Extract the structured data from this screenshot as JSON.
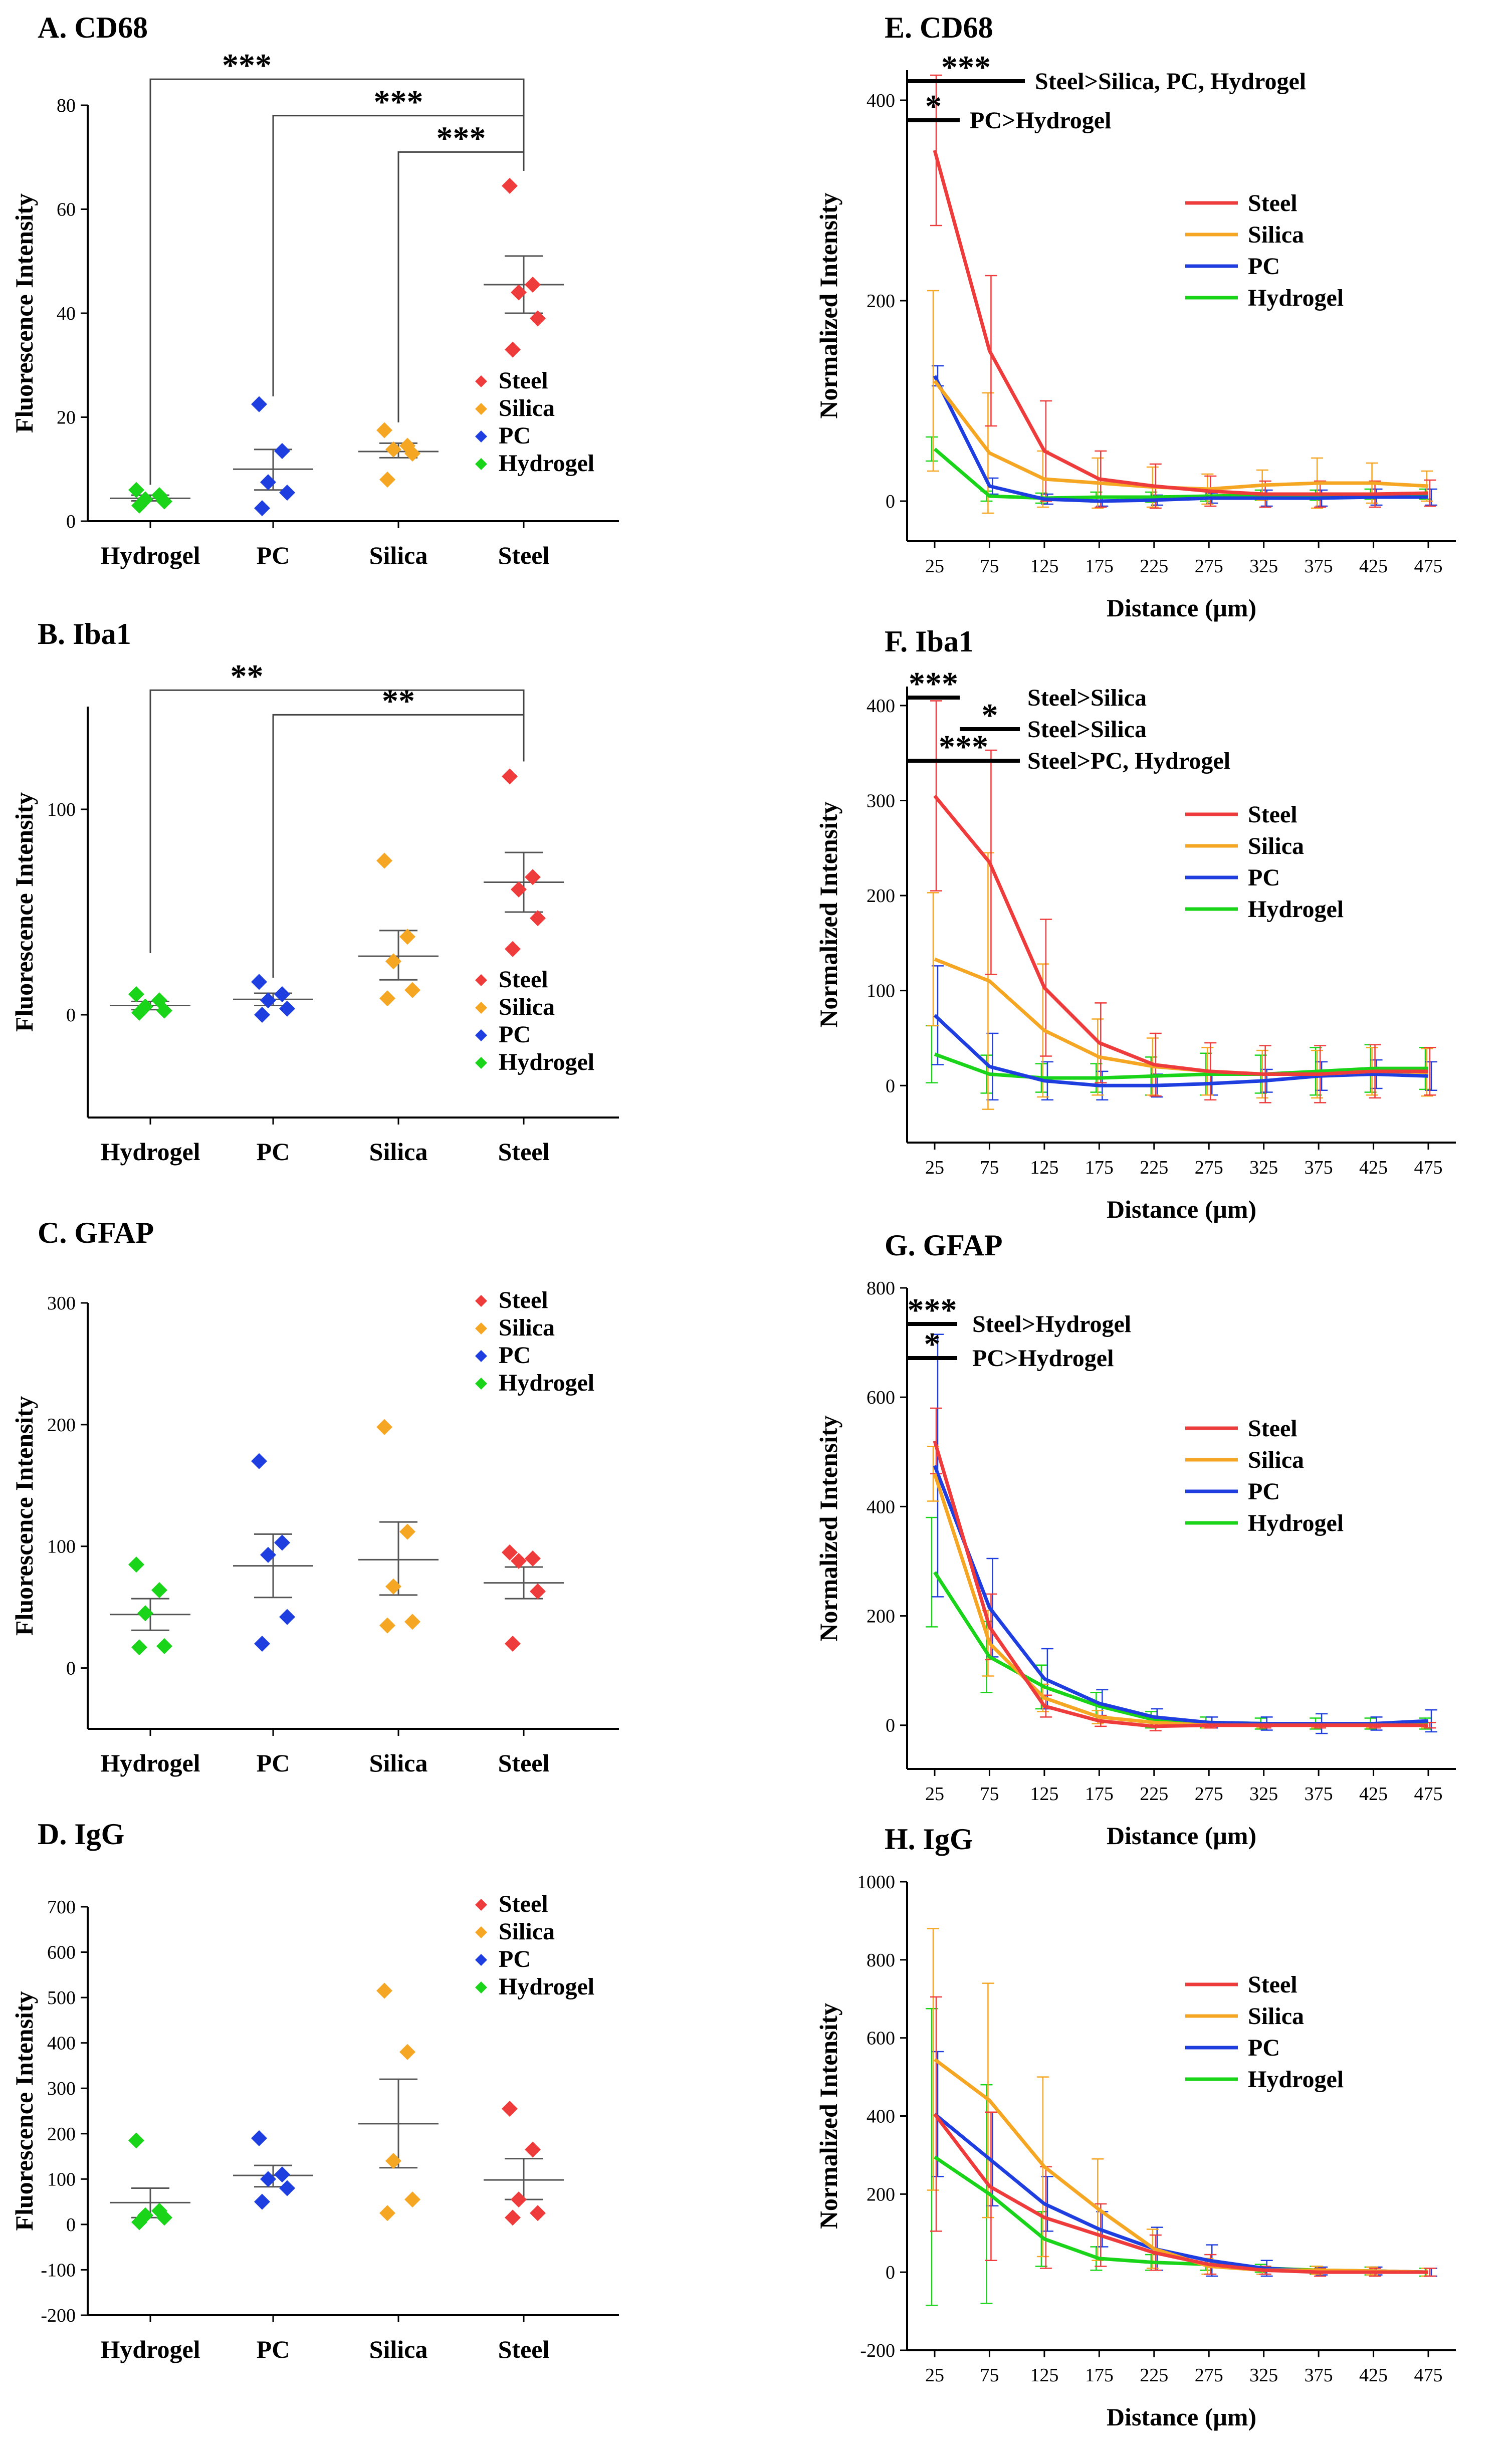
{
  "colors": {
    "Steel": "#ee3b3b",
    "Silica": "#f5a623",
    "PC": "#1f3ee0",
    "Hydrogel": "#19d419"
  },
  "chart_data": [
    {
      "id": "A",
      "type": "scatter",
      "title": "A. CD68",
      "ylabel": "Fluorescence Intensity",
      "ylim": [
        0,
        80
      ],
      "yticks": [
        0,
        20,
        40,
        60,
        80
      ],
      "categories": [
        "Hydrogel",
        "PC",
        "Silica",
        "Steel"
      ],
      "legend": [
        "Steel",
        "Silica",
        "PC",
        "Hydrogel"
      ],
      "points": {
        "Hydrogel": [
          6.0,
          5.0,
          4.2,
          3.8,
          3.0
        ],
        "PC": [
          22.5,
          13.5,
          7.5,
          5.5,
          2.5
        ],
        "Silica": [
          17.5,
          14.5,
          13.8,
          13.0,
          8.0
        ],
        "Steel": [
          64.5,
          45.5,
          44.0,
          39.0,
          33.0
        ]
      },
      "mean": {
        "Hydrogel": 4.4,
        "PC": 10.0,
        "Silica": 13.4,
        "Steel": 45.5
      },
      "err": {
        "Hydrogel": [
          3.9,
          5.0
        ],
        "PC": [
          6.0,
          13.8
        ],
        "Silica": [
          12.2,
          15.0
        ],
        "Steel": [
          40.0,
          51.0
        ]
      },
      "sig": [
        {
          "from": "Hydrogel",
          "to": "Steel",
          "label": "***",
          "y": 85
        },
        {
          "from": "PC",
          "to": "Steel",
          "label": "***",
          "y": 78
        },
        {
          "from": "Silica",
          "to": "Steel",
          "label": "***",
          "y": 71
        }
      ]
    },
    {
      "id": "B",
      "type": "scatter",
      "title": "B. Iba1",
      "ylabel": "Fluorescence Intensity",
      "ylim": [
        -50,
        150
      ],
      "yticks": [
        0,
        100
      ],
      "categories": [
        "Hydrogel",
        "PC",
        "Silica",
        "Steel"
      ],
      "legend": [
        "Steel",
        "Silica",
        "PC",
        "Hydrogel"
      ],
      "points": {
        "Hydrogel": [
          10,
          7,
          4,
          2,
          1
        ],
        "PC": [
          16,
          10,
          7,
          3,
          0
        ],
        "Silica": [
          75,
          38,
          26,
          12,
          8
        ],
        "Steel": [
          116,
          67,
          61,
          47,
          32
        ]
      },
      "mean": {
        "Hydrogel": 4.5,
        "PC": 7.5,
        "Silica": 28.5,
        "Steel": 64.5
      },
      "err": {
        "Hydrogel": [
          2.5,
          6.5
        ],
        "PC": [
          4.5,
          10.5
        ],
        "Silica": [
          17,
          41
        ],
        "Steel": [
          50,
          79
        ]
      },
      "sig": [
        {
          "from": "Hydrogel",
          "to": "Steel",
          "label": "**",
          "y": 158
        },
        {
          "from": "PC",
          "to": "Steel",
          "label": "**",
          "y": 146
        }
      ]
    },
    {
      "id": "C",
      "type": "scatter",
      "title": "C. GFAP",
      "ylabel": "Fluorescence Intensity",
      "ylim": [
        -50,
        300
      ],
      "yticks": [
        0,
        100,
        200,
        300
      ],
      "categories": [
        "Hydrogel",
        "PC",
        "Silica",
        "Steel"
      ],
      "legend": [
        "Steel",
        "Silica",
        "PC",
        "Hydrogel"
      ],
      "points": {
        "Hydrogel": [
          85,
          64,
          45,
          18,
          17
        ],
        "PC": [
          170,
          103,
          93,
          42,
          20
        ],
        "Silica": [
          198,
          112,
          67,
          38,
          35
        ],
        "Steel": [
          95,
          90,
          88,
          63,
          20
        ]
      },
      "mean": {
        "Hydrogel": 44,
        "PC": 84,
        "Silica": 89,
        "Steel": 70
      },
      "err": {
        "Hydrogel": [
          31,
          57
        ],
        "PC": [
          58,
          110
        ],
        "Silica": [
          60,
          120
        ],
        "Steel": [
          57,
          83
        ]
      },
      "sig": []
    },
    {
      "id": "D",
      "type": "scatter",
      "title": "D. IgG",
      "ylabel": "Fluorescence Intensity",
      "ylim": [
        -200,
        700
      ],
      "yticks": [
        -200,
        -100,
        0,
        100,
        200,
        300,
        400,
        500,
        600,
        700
      ],
      "categories": [
        "Hydrogel",
        "PC",
        "Silica",
        "Steel"
      ],
      "legend": [
        "Steel",
        "Silica",
        "PC",
        "Hydrogel"
      ],
      "points": {
        "Hydrogel": [
          185,
          30,
          20,
          15,
          5
        ],
        "PC": [
          190,
          110,
          100,
          80,
          50
        ],
        "Silica": [
          515,
          380,
          140,
          55,
          25
        ],
        "Steel": [
          255,
          165,
          55,
          25,
          15
        ]
      },
      "mean": {
        "Hydrogel": 48,
        "PC": 108,
        "Silica": 222,
        "Steel": 98
      },
      "err": {
        "Hydrogel": [
          15,
          80
        ],
        "PC": [
          83,
          130
        ],
        "Silica": [
          125,
          320
        ],
        "Steel": [
          55,
          145
        ]
      },
      "sig": []
    },
    {
      "id": "E",
      "type": "line",
      "title": "E. CD68",
      "xlabel": "Distance (μm)",
      "ylabel": "Normalized Intensity",
      "x": [
        25,
        75,
        125,
        175,
        225,
        275,
        325,
        375,
        425,
        475
      ],
      "ylim": [
        -40,
        430
      ],
      "yticks": [
        0,
        200,
        400
      ],
      "series": [
        {
          "name": "Steel",
          "values": [
            350,
            150,
            50,
            22,
            15,
            10,
            7,
            7,
            7,
            8
          ],
          "err": [
            75,
            75,
            50,
            28,
            22,
            15,
            13,
            13,
            13,
            13
          ]
        },
        {
          "name": "Silica",
          "values": [
            120,
            48,
            22,
            18,
            14,
            12,
            16,
            18,
            18,
            15
          ],
          "err": [
            90,
            60,
            28,
            25,
            20,
            15,
            15,
            25,
            20,
            15
          ]
        },
        {
          "name": "PC",
          "values": [
            125,
            15,
            2,
            0,
            1,
            3,
            3,
            3,
            4,
            4
          ],
          "err": [
            10,
            8,
            5,
            5,
            5,
            5,
            8,
            8,
            8,
            8
          ]
        },
        {
          "name": "Hydrogel",
          "values": [
            52,
            5,
            3,
            4,
            4,
            5,
            6,
            6,
            7,
            7
          ],
          "err": [
            12,
            5,
            5,
            5,
            5,
            5,
            5,
            5,
            5,
            5
          ]
        }
      ],
      "sig": [
        {
          "label": "***",
          "text": "Steel>Silica,  PC, Hydrogel",
          "x0": 25,
          "x1": 75
        },
        {
          "label": "*",
          "text": "PC>Hydrogel",
          "x0": 25,
          "x1": 40
        }
      ],
      "legend": [
        "Steel",
        "Silica",
        "PC",
        "Hydrogel"
      ]
    },
    {
      "id": "F",
      "type": "line",
      "title": "F. Iba1",
      "xlabel": "Distance (μm)",
      "ylabel": "Normalized Intensity",
      "x": [
        25,
        75,
        125,
        175,
        225,
        275,
        325,
        375,
        425,
        475
      ],
      "ylim": [
        -60,
        420
      ],
      "yticks": [
        0,
        100,
        200,
        300,
        400
      ],
      "series": [
        {
          "name": "Steel",
          "values": [
            305,
            235,
            103,
            45,
            22,
            15,
            12,
            12,
            15,
            15
          ],
          "err": [
            100,
            118,
            72,
            42,
            33,
            30,
            30,
            30,
            28,
            25
          ]
        },
        {
          "name": "Silica",
          "values": [
            133,
            110,
            58,
            30,
            20,
            15,
            12,
            12,
            15,
            14
          ],
          "err": [
            70,
            135,
            70,
            40,
            30,
            25,
            25,
            25,
            25,
            25
          ]
        },
        {
          "name": "PC",
          "values": [
            74,
            20,
            5,
            0,
            0,
            2,
            5,
            10,
            12,
            10
          ],
          "err": [
            52,
            35,
            20,
            15,
            12,
            12,
            12,
            15,
            15,
            15
          ]
        },
        {
          "name": "Hydrogel",
          "values": [
            33,
            12,
            8,
            8,
            10,
            12,
            12,
            15,
            18,
            18
          ],
          "err": [
            30,
            20,
            15,
            15,
            20,
            22,
            20,
            25,
            25,
            22
          ]
        }
      ],
      "sig": [
        {
          "label": "***",
          "text": "Steel>Silica",
          "x0": 25,
          "x1": 60
        },
        {
          "label": "*",
          "text": "Steel>Silica",
          "x0": 60,
          "x1": 100
        },
        {
          "label": "***",
          "text": "Steel>PC, Hydrogel",
          "x0": 25,
          "x1": 100
        }
      ],
      "legend": [
        "Steel",
        "Silica",
        "PC",
        "Hydrogel"
      ]
    },
    {
      "id": "G",
      "type": "line",
      "title": "G. GFAP",
      "xlabel": "Distance (μm)",
      "ylabel": "Normalized Intensity",
      "x": [
        25,
        75,
        125,
        175,
        225,
        275,
        325,
        375,
        425,
        475
      ],
      "ylim": [
        -80,
        800
      ],
      "yticks": [
        0,
        200,
        400,
        600,
        800
      ],
      "series": [
        {
          "name": "Steel",
          "values": [
            520,
            180,
            35,
            8,
            -2,
            0,
            0,
            0,
            0,
            0
          ],
          "err": [
            60,
            60,
            20,
            10,
            8,
            5,
            5,
            5,
            5,
            5
          ]
        },
        {
          "name": "Silica",
          "values": [
            460,
            150,
            50,
            15,
            5,
            0,
            0,
            0,
            0,
            0
          ],
          "err": [
            50,
            60,
            25,
            12,
            8,
            5,
            5,
            5,
            5,
            5
          ]
        },
        {
          "name": "PC",
          "values": [
            475,
            215,
            85,
            40,
            15,
            5,
            3,
            3,
            3,
            8
          ],
          "err": [
            240,
            90,
            55,
            25,
            15,
            10,
            12,
            18,
            12,
            20
          ]
        },
        {
          "name": "Hydrogel",
          "values": [
            280,
            125,
            70,
            35,
            10,
            5,
            3,
            3,
            3,
            3
          ],
          "err": [
            100,
            65,
            40,
            25,
            15,
            10,
            10,
            10,
            10,
            10
          ]
        }
      ],
      "sig": [
        {
          "label": "***",
          "text": "Steel>Hydrogel",
          "x0": 25,
          "x1": 55
        },
        {
          "label": "*",
          "text": "PC>Hydrogel",
          "x0": 25,
          "x1": 55
        }
      ],
      "legend": [
        "Steel",
        "Silica",
        "PC",
        "Hydrogel"
      ]
    },
    {
      "id": "H",
      "type": "line",
      "title": "H. IgG",
      "xlabel": "Distance (μm)",
      "ylabel": "Normalized Intensity",
      "x": [
        25,
        75,
        125,
        175,
        225,
        275,
        325,
        375,
        425,
        475
      ],
      "ylim": [
        -200,
        1000
      ],
      "yticks": [
        -200,
        0,
        200,
        400,
        600,
        800,
        1000
      ],
      "series": [
        {
          "name": "Steel",
          "values": [
            405,
            220,
            140,
            95,
            50,
            20,
            5,
            0,
            0,
            0
          ],
          "err": [
            300,
            190,
            130,
            80,
            45,
            25,
            10,
            10,
            10,
            10
          ]
        },
        {
          "name": "Silica",
          "values": [
            545,
            440,
            270,
            160,
            60,
            15,
            5,
            5,
            3,
            0
          ],
          "err": [
            335,
            300,
            230,
            130,
            50,
            20,
            10,
            10,
            10,
            10
          ]
        },
        {
          "name": "PC",
          "values": [
            405,
            290,
            175,
            110,
            60,
            30,
            10,
            3,
            3,
            0
          ],
          "err": [
            160,
            120,
            70,
            45,
            55,
            40,
            20,
            10,
            10,
            10
          ]
        },
        {
          "name": "Hydrogel",
          "values": [
            295,
            200,
            85,
            35,
            25,
            20,
            10,
            5,
            3,
            0
          ],
          "err": [
            380,
            280,
            70,
            30,
            20,
            15,
            10,
            10,
            10,
            10
          ]
        }
      ],
      "sig": [],
      "legend": [
        "Steel",
        "Silica",
        "PC",
        "Hydrogel"
      ]
    }
  ]
}
